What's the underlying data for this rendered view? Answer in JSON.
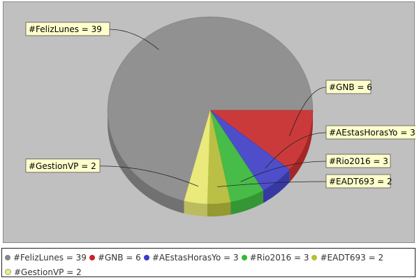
{
  "chart_data": {
    "type": "pie",
    "title": "",
    "style": "3d",
    "slices": [
      {
        "label": "#FelizLunes",
        "value": 39,
        "color": "#888888",
        "legend_text": "#FelizLunes = 39"
      },
      {
        "label": "#GNB",
        "value": 6,
        "color": "#cc2222",
        "legend_text": "#GNB = 6"
      },
      {
        "label": "#AEstasHorasYo",
        "value": 3,
        "color": "#3a3acc",
        "legend_text": "#AEstasHorasYo = 3"
      },
      {
        "label": "#Rio2016",
        "value": 3,
        "color": "#33bb33",
        "legend_text": "#Rio2016 = 3"
      },
      {
        "label": "#EADT693",
        "value": 2,
        "color": "#b8c030",
        "legend_text": "#EADT693 = 2"
      },
      {
        "label": "#GestionVP",
        "value": 2,
        "color": "#f0f070",
        "legend_text": "#GestionVP = 2"
      }
    ],
    "legend_position": "bottom"
  }
}
